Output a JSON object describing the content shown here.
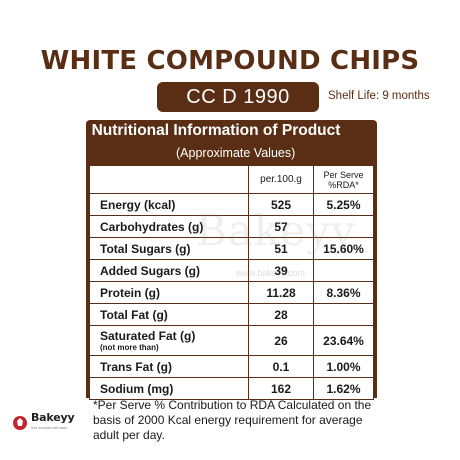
{
  "header": {
    "title": "WHITE COMPOUND CHIPS",
    "code": "CC D 1990",
    "shelf_life": "Shelf Life: 9 months"
  },
  "panel": {
    "title": "Nutritional Information of Product",
    "subtitle": "(Approximate Values)"
  },
  "table": {
    "col_per100": "per.100.g",
    "col_perserve_line1": "Per Serve",
    "col_perserve_line2": "%RDA*",
    "rows": [
      {
        "name": "Energy (kcal)",
        "per100": "525",
        "perserve": "5.25%"
      },
      {
        "name": "Carbohydrates (g)",
        "per100": "57",
        "perserve": ""
      },
      {
        "name": "Total Sugars (g)",
        "per100": "51",
        "perserve": "15.60%"
      },
      {
        "name": "Added Sugars (g)",
        "per100": "39",
        "perserve": ""
      },
      {
        "name": "Protein (g)",
        "per100": "11.28",
        "perserve": "8.36%"
      },
      {
        "name": "Total Fat (g)",
        "per100": "28",
        "perserve": ""
      },
      {
        "name": "Saturated Fat (g)",
        "note": "(not more than)",
        "per100": "26",
        "perserve": "23.64%"
      },
      {
        "name": "Trans Fat (g)",
        "per100": "0.1",
        "perserve": "1.00%"
      },
      {
        "name": "Sodium (mg)",
        "per100": "162",
        "perserve": "1.62%"
      }
    ]
  },
  "footnote": "*Per Serve % Contribution to RDA Calculated on the basis of 2000 Kcal energy requirement for average adult per day.",
  "watermark": {
    "text": "Bakeyy",
    "url": "www.bakeyy.com"
  },
  "logo": {
    "word": "Bakeyy",
    "tagline": "let's innovate with taste",
    "icon": "bakeyy-logo-icon",
    "colors": {
      "mark": "#c0272d"
    }
  },
  "colors": {
    "brand_brown": "#5a2e14",
    "text": "#1a1a1a"
  }
}
